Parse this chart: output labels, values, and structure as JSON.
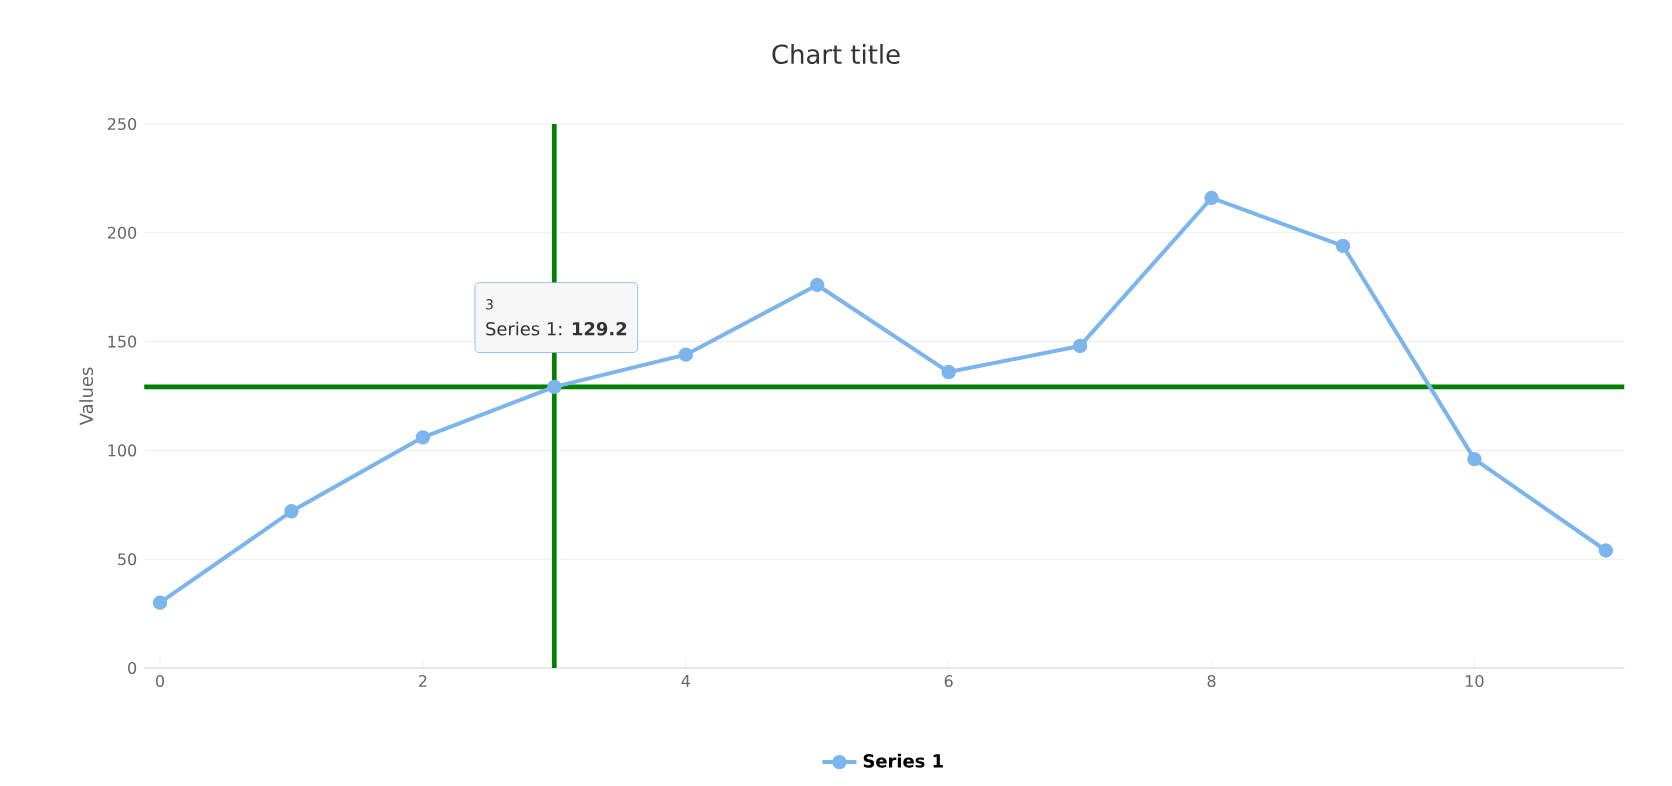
{
  "chart_data": {
    "type": "line",
    "title": "Chart title",
    "ylabel": "Values",
    "x": [
      0,
      1,
      2,
      3,
      4,
      5,
      6,
      7,
      8,
      9,
      10,
      11
    ],
    "series": [
      {
        "name": "Series 1",
        "color": "#7cb5ec",
        "values": [
          30,
          72,
          106,
          129.2,
          144,
          176,
          136,
          148,
          216,
          194,
          96,
          54
        ]
      }
    ],
    "xlim": [
      -0.12,
      11.14
    ],
    "xticks": [
      0,
      2,
      4,
      6,
      8,
      10
    ],
    "ylim": [
      0,
      250
    ],
    "yticks": [
      0,
      50,
      100,
      150,
      200,
      250
    ],
    "grid": "y",
    "legend": "bottom",
    "marker": "circle",
    "line_style": "solid",
    "ref_lines": [
      {
        "axis": "x",
        "value": 3,
        "color": "#008000"
      },
      {
        "axis": "y",
        "value": 129.2,
        "color": "#008000"
      }
    ],
    "annotations": [
      "3",
      "Series 1: **129.2**"
    ]
  }
}
